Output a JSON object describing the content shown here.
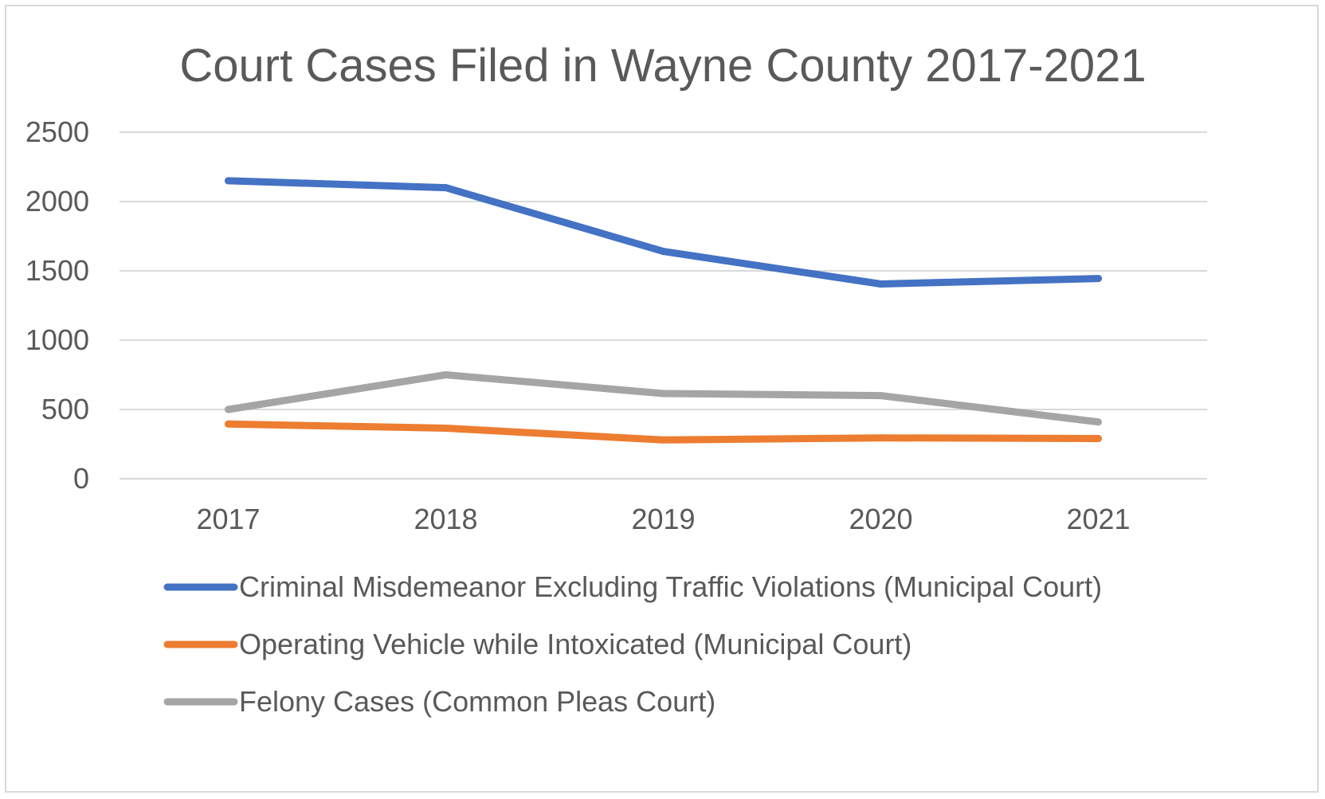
{
  "chart_data": {
    "type": "line",
    "title": "Court Cases Filed in Wayne County 2017-2021",
    "xlabel": "",
    "ylabel": "",
    "categories": [
      "2017",
      "2018",
      "2019",
      "2020",
      "2021"
    ],
    "ylim": [
      0,
      2500
    ],
    "yticks": [
      0,
      500,
      1000,
      1500,
      2000,
      2500
    ],
    "grid": true,
    "legend_position": "bottom",
    "series": [
      {
        "name": "Criminal Misdemeanor Excluding Traffic Violations (Municipal Court)",
        "color": "#4472c4",
        "values": [
          2150,
          2100,
          1640,
          1405,
          1445
        ]
      },
      {
        "name": "Operating Vehicle while Intoxicated (Municipal Court)",
        "color": "#ed7d31",
        "values": [
          395,
          365,
          280,
          295,
          290
        ]
      },
      {
        "name": "Felony Cases (Common Pleas Court)",
        "color": "#a5a5a5",
        "values": [
          500,
          750,
          615,
          600,
          410
        ]
      }
    ]
  }
}
